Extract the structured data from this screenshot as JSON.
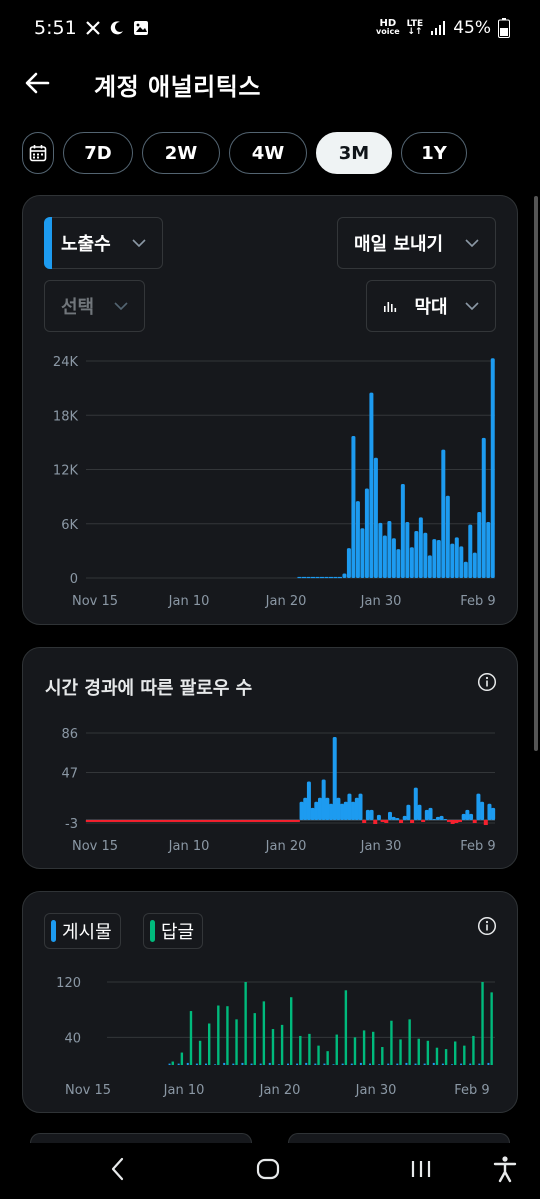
{
  "status": {
    "time": "5:51",
    "battery": "45%",
    "hd_top": "HD",
    "hd_bottom": "voice",
    "lte_top": "LTE"
  },
  "header": {
    "title": "계정 애널리틱스"
  },
  "ranges": {
    "items": [
      "7D",
      "2W",
      "4W",
      "3M",
      "1Y"
    ],
    "active": "3M"
  },
  "impressions_card": {
    "metric_dropdown": "노출수",
    "export_dropdown": "매일 보내기",
    "compare_dropdown": "선택",
    "charttype_dropdown": "막대"
  },
  "followers_card": {
    "title": "시간 경과에 따른 팔로우 수"
  },
  "posts_card": {
    "legend_posts": "게시물",
    "legend_replies": "답글"
  },
  "colors": {
    "accent": "#1d9bf0",
    "green": "#00ba7c",
    "red": "#f4212e",
    "card": "#16181c"
  },
  "chart_data": [
    {
      "type": "bar",
      "title": "",
      "x_ticks": [
        "Nov 15",
        "Jan 10",
        "Jan 20",
        "Jan 30",
        "Feb 9"
      ],
      "y_ticks": [
        "24K",
        "18K",
        "12K",
        "6K",
        "0"
      ],
      "ylim": [
        0,
        24000
      ],
      "grid": true,
      "values": [
        0,
        0,
        0,
        0,
        0,
        0,
        0,
        0,
        0,
        0,
        0,
        0,
        0,
        0,
        0,
        0,
        0,
        0,
        0,
        0,
        0,
        0,
        0,
        0,
        0,
        0,
        0,
        0,
        0,
        0,
        0,
        0,
        0,
        0,
        0,
        0,
        0,
        0,
        0,
        0,
        0,
        0,
        0,
        0,
        0,
        0,
        0,
        0,
        0,
        0,
        0,
        0,
        0,
        0,
        0,
        0,
        0,
        500,
        3300,
        15700,
        8500,
        5500,
        9900,
        20500,
        13300,
        6100,
        4700,
        6300,
        4400,
        3200,
        10400,
        6200,
        3400,
        5200,
        6700,
        5000,
        2500,
        4300,
        4200,
        14200,
        9100,
        3800,
        4500,
        3500,
        1800,
        5900,
        2800,
        7300,
        15500,
        6200,
        24300
      ],
      "series": [
        {
          "name": "노출수",
          "color": "#1d9bf0"
        }
      ]
    },
    {
      "type": "bar",
      "title": "시간 경과에 따른 팔로우 수",
      "x_ticks": [
        "Nov 15",
        "Jan 10",
        "Jan 20",
        "Jan 30",
        "Feb 9"
      ],
      "y_ticks": [
        "86",
        "47",
        "-3"
      ],
      "ylim": [
        -3,
        86
      ],
      "grid": true,
      "values": [
        -1,
        -1,
        -1,
        -1,
        -1,
        -1,
        -1,
        -1,
        -1,
        -1,
        -1,
        -1,
        -1,
        -1,
        -1,
        -1,
        -1,
        -1,
        -1,
        -1,
        -1,
        -1,
        -1,
        -1,
        -1,
        -1,
        -1,
        -1,
        -1,
        -1,
        -1,
        -1,
        -1,
        -1,
        -1,
        -1,
        -1,
        -1,
        -1,
        -1,
        -1,
        -1,
        -1,
        -1,
        -1,
        -1,
        -1,
        -1,
        -1,
        -1,
        -1,
        -1,
        -1,
        -1,
        -1,
        -1,
        -1,
        -1,
        18,
        22,
        38,
        12,
        18,
        22,
        40,
        22,
        16,
        82,
        22,
        16,
        18,
        26,
        18,
        22,
        26,
        -3,
        10,
        10,
        -4,
        5,
        -2,
        -3,
        8,
        3,
        2,
        -3,
        4,
        15,
        -3,
        32,
        15,
        -2,
        10,
        12,
        1,
        3,
        4,
        1,
        -1,
        -4,
        -3,
        -1,
        6,
        10,
        6,
        -3,
        26,
        18,
        -5,
        16,
        12
      ],
      "series": [
        {
          "name": "팔로우 수",
          "color": "#1d9bf0"
        }
      ]
    },
    {
      "type": "bar",
      "title": "",
      "x_ticks": [
        "Nov 15",
        "Jan 10",
        "Jan 20",
        "Jan 30",
        "Feb 9"
      ],
      "y_ticks": [
        "120",
        "40"
      ],
      "ylim": [
        0,
        120
      ],
      "grid": true,
      "series": [
        {
          "name": "게시물",
          "color": "#1d9bf0",
          "values": [
            2,
            2,
            3,
            2,
            2,
            1,
            3,
            2,
            3,
            2,
            2,
            3,
            1,
            2,
            2,
            3,
            2,
            2,
            1,
            2,
            2,
            3,
            2,
            1,
            2,
            2,
            3,
            2,
            2,
            3,
            2,
            1,
            2,
            2,
            2,
            3
          ]
        },
        {
          "name": "답글",
          "color": "#00ba7c",
          "values": [
            5,
            18,
            78,
            35,
            60,
            86,
            85,
            66,
            120,
            75,
            92,
            52,
            58,
            98,
            42,
            45,
            28,
            20,
            44,
            108,
            40,
            50,
            48,
            26,
            64,
            37,
            66,
            38,
            35,
            25,
            23,
            34,
            28,
            42,
            120,
            105
          ]
        }
      ]
    }
  ]
}
